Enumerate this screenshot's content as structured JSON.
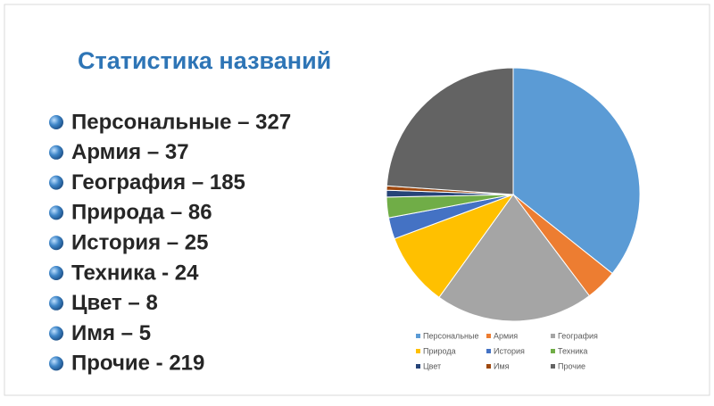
{
  "title": "Статистика названий",
  "list": [
    "Персональные – 327",
    "Армия – 37",
    "География – 185",
    "Природа – 86",
    "История – 25",
    "Техника - 24",
    "Цвет – 8",
    "Имя – 5",
    "Прочие - 219"
  ],
  "chart_data": {
    "type": "pie",
    "categories": [
      "Персональные",
      "Армия",
      "География",
      "Природа",
      "История",
      "Техника",
      "Цвет",
      "Имя",
      "Прочие"
    ],
    "values": [
      327,
      37,
      185,
      86,
      25,
      24,
      8,
      5,
      219
    ],
    "colors": [
      "#5b9bd5",
      "#ed7d31",
      "#a5a5a5",
      "#ffc000",
      "#4472c4",
      "#70ad47",
      "#264478",
      "#9e480e",
      "#636363"
    ],
    "legend": "bottom"
  }
}
